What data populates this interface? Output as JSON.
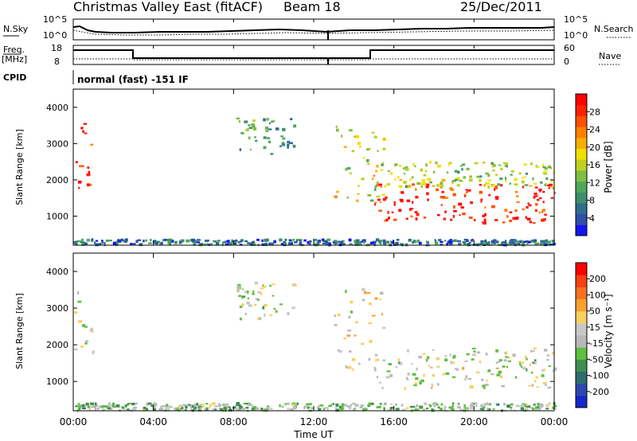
{
  "header": {
    "title": "Christmas Valley East (fitACF)",
    "beam": "Beam 18",
    "date": "25/Dec/2011"
  },
  "strips": {
    "nsky_label": "N.Sky",
    "nsky_ticks": [
      "10^5",
      "10^0"
    ],
    "nsearch_label": "N.Search",
    "nsearch_ticks": [
      "10^5",
      "10^0"
    ],
    "freq_label": "Freq.",
    "freq_unit": "[MHz]",
    "freq_ticks": [
      "18",
      "8"
    ],
    "nave_label": "Nave",
    "nave_ticks": [
      "60",
      "0"
    ],
    "cpid_label": "CPID",
    "cpid_text": "normal (fast) -151 IF"
  },
  "axes": {
    "x_ticks": [
      "00:00",
      "04:00",
      "08:00",
      "12:00",
      "16:00",
      "20:00",
      "00:00"
    ],
    "x_label": "Time UT",
    "y_label": "Slant Range [km]",
    "y_ticks": [
      "1000",
      "2000",
      "3000",
      "4000"
    ]
  },
  "colorbars": {
    "power": {
      "label": "Power [dB]",
      "ticks": [
        "4",
        "8",
        "12",
        "16",
        "20",
        "24",
        "28"
      ],
      "colors": [
        "#1414f0",
        "#2f4fa8",
        "#2e6d8e",
        "#3f8f6a",
        "#4fa85a",
        "#7fbf40",
        "#bfd020",
        "#f0e000",
        "#f8b000",
        "#ff8000",
        "#ff5000",
        "#ff2000",
        "#ff0000"
      ]
    },
    "velocity": {
      "label": "Velocity [m s⁻¹]",
      "ticks": [
        "200",
        "100",
        "50",
        "15",
        "-15",
        "-50",
        "-100",
        "-200"
      ],
      "colors": [
        "#1428c8",
        "#2c48b0",
        "#2e6d6d",
        "#3f8f4f",
        "#5fbf3f",
        "#b8b8b8",
        "#c8c8c8",
        "#f8d060",
        "#f8a030",
        "#f87020",
        "#f84010",
        "#ff0000"
      ]
    }
  },
  "chart_data": [
    {
      "type": "heatmap",
      "title": "Christmas Valley East (fitACF)",
      "subtitle": "Beam 18 — 25/Dec/2011",
      "xlabel": "Time UT",
      "ylabel": "Slant Range [km]",
      "xlim": [
        "00:00",
        "24:00"
      ],
      "ylim": [
        200,
        4500
      ],
      "parameter": "Power [dB]",
      "clim": [
        0,
        30
      ],
      "regions": [
        {
          "t_start": "00:00",
          "t_end": "01:00",
          "range_start": 1500,
          "range_end": 3600,
          "value": 26
        },
        {
          "t_start": "08:00",
          "t_end": "11:00",
          "range_start": 2700,
          "range_end": 3700,
          "value": 10
        },
        {
          "t_start": "13:00",
          "t_end": "15:30",
          "range_start": 1300,
          "range_end": 3600,
          "value": 16
        },
        {
          "t_start": "15:00",
          "t_end": "24:00",
          "range_start": 800,
          "range_end": 1900,
          "value": 27
        },
        {
          "t_start": "15:00",
          "t_end": "24:00",
          "range_start": 1800,
          "range_end": 2500,
          "value": 14
        },
        {
          "t_start": "00:00",
          "t_end": "24:00",
          "range_start": 200,
          "range_end": 350,
          "value": 6
        }
      ]
    },
    {
      "type": "heatmap",
      "title": "Christmas Valley East (fitACF)",
      "subtitle": "Beam 18 — 25/Dec/2011",
      "xlabel": "Time UT",
      "ylabel": "Slant Range [km]",
      "xlim": [
        "00:00",
        "24:00"
      ],
      "ylim": [
        200,
        4500
      ],
      "parameter": "Velocity [m s^-1]",
      "clim": [
        -250,
        250
      ],
      "regions": [
        {
          "t_start": "00:00",
          "t_end": "01:00",
          "range_start": 1700,
          "range_end": 3500,
          "value": 0
        },
        {
          "t_start": "08:00",
          "t_end": "11:00",
          "range_start": 2700,
          "range_end": 3700,
          "value": 0
        },
        {
          "t_start": "13:00",
          "t_end": "15:30",
          "range_start": 1300,
          "range_end": 3600,
          "value": 40
        },
        {
          "t_start": "15:00",
          "t_end": "24:00",
          "range_start": 800,
          "range_end": 1900,
          "value": 0
        },
        {
          "t_start": "00:00",
          "t_end": "24:00",
          "range_start": 200,
          "range_end": 400,
          "value": -40
        }
      ]
    }
  ]
}
